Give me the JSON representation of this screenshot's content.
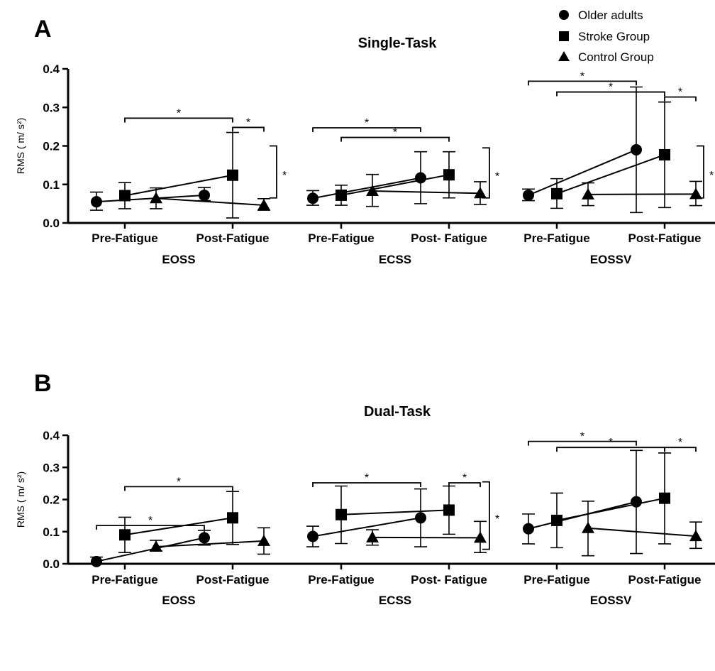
{
  "legend": {
    "placement": "top-right",
    "items": [
      {
        "label": "Older adults",
        "marker": "circle"
      },
      {
        "label": "Stroke Group",
        "marker": "square"
      },
      {
        "label": "Control Group",
        "marker": "triangle"
      }
    ]
  },
  "colors": {
    "ink": "#000000",
    "background": "#ffffff"
  },
  "chart_data": [
    {
      "type": "scatter",
      "panel": "A",
      "title": "Single-Task",
      "ylabel": "RMS ( m/ s²)",
      "ylim": [
        0,
        0.4
      ],
      "yticks": [
        "0.0",
        "0.1",
        "0.2",
        "0.3",
        "0.4"
      ],
      "grid": false,
      "groups": [
        {
          "name": "EOSS",
          "x_labels": [
            "Pre-Fatigue",
            "Post-Fatigue"
          ]
        },
        {
          "name": "ECSS",
          "x_labels": [
            "Pre-Fatigue",
            "Post- Fatigue"
          ]
        },
        {
          "name": "EOSSV",
          "x_labels": [
            "Pre-Fatigue",
            "Post-Fatigue"
          ]
        }
      ],
      "series": [
        {
          "name": "Older adults",
          "marker": "circle",
          "points": [
            {
              "group": "EOSS",
              "time": "Pre-Fatigue",
              "y": 0.055,
              "err_low": 0.033,
              "err_high": 0.08
            },
            {
              "group": "EOSS",
              "time": "Post-Fatigue",
              "y": 0.072,
              "err_low": 0.058,
              "err_high": 0.092
            },
            {
              "group": "ECSS",
              "time": "Pre-Fatigue",
              "y": 0.064,
              "err_low": 0.046,
              "err_high": 0.084
            },
            {
              "group": "ECSS",
              "time": "Post-Fatigue",
              "y": 0.117,
              "err_low": 0.05,
              "err_high": 0.185
            },
            {
              "group": "EOSSV",
              "time": "Pre-Fatigue",
              "y": 0.072,
              "err_low": 0.058,
              "err_high": 0.088
            },
            {
              "group": "EOSSV",
              "time": "Post-Fatigue",
              "y": 0.19,
              "err_low": 0.027,
              "err_high": 0.353
            }
          ]
        },
        {
          "name": "Stroke Group",
          "marker": "square",
          "points": [
            {
              "group": "EOSS",
              "time": "Pre-Fatigue",
              "y": 0.071,
              "err_low": 0.037,
              "err_high": 0.105
            },
            {
              "group": "EOSS",
              "time": "Post-Fatigue",
              "y": 0.124,
              "err_low": 0.013,
              "err_high": 0.235
            },
            {
              "group": "ECSS",
              "time": "Pre-Fatigue",
              "y": 0.072,
              "err_low": 0.046,
              "err_high": 0.098
            },
            {
              "group": "ECSS",
              "time": "Post-Fatigue",
              "y": 0.125,
              "err_low": 0.065,
              "err_high": 0.185
            },
            {
              "group": "EOSSV",
              "time": "Pre-Fatigue",
              "y": 0.076,
              "err_low": 0.038,
              "err_high": 0.115
            },
            {
              "group": "EOSSV",
              "time": "Post-Fatigue",
              "y": 0.177,
              "err_low": 0.04,
              "err_high": 0.314
            }
          ]
        },
        {
          "name": "Control Group",
          "marker": "triangle",
          "points": [
            {
              "group": "EOSS",
              "time": "Pre-Fatigue",
              "y": 0.064,
              "err_low": 0.037,
              "err_high": 0.091
            },
            {
              "group": "EOSS",
              "time": "Post-Fatigue",
              "y": 0.046,
              "err_low": 0.033,
              "err_high": 0.063
            },
            {
              "group": "ECSS",
              "time": "Pre-Fatigue",
              "y": 0.083,
              "err_low": 0.043,
              "err_high": 0.126
            },
            {
              "group": "ECSS",
              "time": "Post-Fatigue",
              "y": 0.077,
              "err_low": 0.048,
              "err_high": 0.107
            },
            {
              "group": "EOSSV",
              "time": "Pre-Fatigue",
              "y": 0.074,
              "err_low": 0.045,
              "err_high": 0.104
            },
            {
              "group": "EOSSV",
              "time": "Post-Fatigue",
              "y": 0.075,
              "err_low": 0.045,
              "err_high": 0.108
            }
          ]
        }
      ],
      "significance": [
        {
          "from": {
            "group": "EOSS",
            "time": "Pre-Fatigue",
            "series": "Stroke Group"
          },
          "to": {
            "group": "EOSS",
            "time": "Post-Fatigue",
            "series": "Stroke Group"
          },
          "y": 0.272,
          "label": "*"
        },
        {
          "from": {
            "group": "EOSS",
            "time": "Post-Fatigue",
            "series": "Stroke Group"
          },
          "to": {
            "group": "EOSS",
            "time": "Post-Fatigue",
            "series": "Control Group"
          },
          "y": 0.248,
          "label": "*"
        },
        {
          "from": {
            "group": "ECSS",
            "time": "Pre-Fatigue",
            "series": "Older adults"
          },
          "to": {
            "group": "ECSS",
            "time": "Post-Fatigue",
            "series": "Older adults"
          },
          "y": 0.247,
          "label": "*"
        },
        {
          "from": {
            "group": "ECSS",
            "time": "Pre-Fatigue",
            "series": "Stroke Group"
          },
          "to": {
            "group": "ECSS",
            "time": "Post-Fatigue",
            "series": "Stroke Group"
          },
          "y": 0.222,
          "label": "*"
        },
        {
          "from": {
            "group": "EOSSV",
            "time": "Pre-Fatigue",
            "series": "Older adults"
          },
          "to": {
            "group": "EOSSV",
            "time": "Post-Fatigue",
            "series": "Older adults"
          },
          "y": 0.368,
          "label": "*"
        },
        {
          "from": {
            "group": "EOSSV",
            "time": "Pre-Fatigue",
            "series": "Stroke Group"
          },
          "to": {
            "group": "EOSSV",
            "time": "Post-Fatigue",
            "series": "Stroke Group"
          },
          "y": 0.34,
          "label": "*"
        },
        {
          "from": {
            "group": "EOSSV",
            "time": "Post-Fatigue",
            "series": "Stroke Group"
          },
          "to": {
            "group": "EOSSV",
            "time": "Post-Fatigue",
            "series": "Control Group"
          },
          "y": 0.327,
          "label": "*"
        }
      ],
      "brackets": [
        {
          "group": "EOSS",
          "y_low": 0.065,
          "y_high": 0.2,
          "label": "*"
        },
        {
          "group": "ECSS",
          "y_low": 0.065,
          "y_high": 0.195,
          "label": "*"
        },
        {
          "group": "EOSSV",
          "y_low": 0.065,
          "y_high": 0.2,
          "label": "*"
        }
      ]
    },
    {
      "type": "scatter",
      "panel": "B",
      "title": "Dual-Task",
      "ylabel": "RMS ( m/ s²)",
      "ylim": [
        0,
        0.4
      ],
      "yticks": [
        "0.0",
        "0.1",
        "0.2",
        "0.3",
        "0.4"
      ],
      "grid": false,
      "groups": [
        {
          "name": "EOSS",
          "x_labels": [
            "Pre-Fatigue",
            "Post-Fatigue"
          ]
        },
        {
          "name": "ECSS",
          "x_labels": [
            "Pre-Fatigue",
            "Post- Fatigue"
          ]
        },
        {
          "name": "EOSSV",
          "x_labels": [
            "Pre-Fatigue",
            "Post-Fatigue"
          ]
        }
      ],
      "series": [
        {
          "name": "Older adults",
          "marker": "circle",
          "points": [
            {
              "group": "EOSS",
              "time": "Pre-Fatigue",
              "y": 0.007,
              "err_low": 0.0,
              "err_high": 0.021
            },
            {
              "group": "EOSS",
              "time": "Post-Fatigue",
              "y": 0.081,
              "err_low": 0.058,
              "err_high": 0.104
            },
            {
              "group": "ECSS",
              "time": "Pre-Fatigue",
              "y": 0.085,
              "err_low": 0.053,
              "err_high": 0.117
            },
            {
              "group": "ECSS",
              "time": "Post-Fatigue",
              "y": 0.143,
              "err_low": 0.053,
              "err_high": 0.233
            },
            {
              "group": "EOSSV",
              "time": "Pre-Fatigue",
              "y": 0.109,
              "err_low": 0.062,
              "err_high": 0.155
            },
            {
              "group": "EOSSV",
              "time": "Post-Fatigue",
              "y": 0.193,
              "err_low": 0.032,
              "err_high": 0.353
            }
          ]
        },
        {
          "name": "Stroke Group",
          "marker": "square",
          "points": [
            {
              "group": "EOSS",
              "time": "Pre-Fatigue",
              "y": 0.09,
              "err_low": 0.035,
              "err_high": 0.145
            },
            {
              "group": "EOSS",
              "time": "Post-Fatigue",
              "y": 0.143,
              "err_low": 0.06,
              "err_high": 0.225
            },
            {
              "group": "ECSS",
              "time": "Pre-Fatigue",
              "y": 0.153,
              "err_low": 0.063,
              "err_high": 0.242
            },
            {
              "group": "ECSS",
              "time": "Post-Fatigue",
              "y": 0.167,
              "err_low": 0.092,
              "err_high": 0.242
            },
            {
              "group": "EOSSV",
              "time": "Pre-Fatigue",
              "y": 0.135,
              "err_low": 0.05,
              "err_high": 0.22
            },
            {
              "group": "EOSSV",
              "time": "Post-Fatigue",
              "y": 0.204,
              "err_low": 0.062,
              "err_high": 0.345
            }
          ]
        },
        {
          "name": "Control Group",
          "marker": "triangle",
          "points": [
            {
              "group": "EOSS",
              "time": "Pre-Fatigue",
              "y": 0.053,
              "err_low": 0.04,
              "err_high": 0.073
            },
            {
              "group": "EOSS",
              "time": "Post-Fatigue",
              "y": 0.071,
              "err_low": 0.03,
              "err_high": 0.112
            },
            {
              "group": "ECSS",
              "time": "Pre-Fatigue",
              "y": 0.082,
              "err_low": 0.058,
              "err_high": 0.106
            },
            {
              "group": "ECSS",
              "time": "Post-Fatigue",
              "y": 0.081,
              "err_low": 0.035,
              "err_high": 0.132
            },
            {
              "group": "EOSSV",
              "time": "Pre-Fatigue",
              "y": 0.111,
              "err_low": 0.025,
              "err_high": 0.195
            },
            {
              "group": "EOSSV",
              "time": "Post-Fatigue",
              "y": 0.086,
              "err_low": 0.048,
              "err_high": 0.13
            }
          ]
        }
      ],
      "significance": [
        {
          "from": {
            "group": "EOSS",
            "time": "Pre-Fatigue",
            "series": "Older adults"
          },
          "to": {
            "group": "EOSS",
            "time": "Post-Fatigue",
            "series": "Older adults"
          },
          "y": 0.119,
          "label": "*"
        },
        {
          "from": {
            "group": "EOSS",
            "time": "Pre-Fatigue",
            "series": "Stroke Group"
          },
          "to": {
            "group": "EOSS",
            "time": "Post-Fatigue",
            "series": "Stroke Group"
          },
          "y": 0.24,
          "label": "*"
        },
        {
          "from": {
            "group": "ECSS",
            "time": "Pre-Fatigue",
            "series": "Older adults"
          },
          "to": {
            "group": "ECSS",
            "time": "Post-Fatigue",
            "series": "Older adults"
          },
          "y": 0.252,
          "label": "*"
        },
        {
          "from": {
            "group": "ECSS",
            "time": "Post-Fatigue",
            "series": "Stroke Group"
          },
          "to": {
            "group": "ECSS",
            "time": "Post-Fatigue",
            "series": "Control Group"
          },
          "y": 0.252,
          "label": "*"
        },
        {
          "from": {
            "group": "EOSSV",
            "time": "Pre-Fatigue",
            "series": "Older adults"
          },
          "to": {
            "group": "EOSSV",
            "time": "Post-Fatigue",
            "series": "Older adults"
          },
          "y": 0.381,
          "label": "*"
        },
        {
          "from": {
            "group": "EOSSV",
            "time": "Pre-Fatigue",
            "series": "Stroke Group"
          },
          "to": {
            "group": "EOSSV",
            "time": "Post-Fatigue",
            "series": "Stroke Group"
          },
          "y": 0.362,
          "label": "*"
        },
        {
          "from": {
            "group": "EOSSV",
            "time": "Post-Fatigue",
            "series": "Stroke Group"
          },
          "to": {
            "group": "EOSSV",
            "time": "Post-Fatigue",
            "series": "Control Group"
          },
          "y": 0.362,
          "label": "*"
        }
      ],
      "brackets": [
        {
          "group": "ECSS",
          "y_low": 0.045,
          "y_high": 0.255,
          "label": "*"
        }
      ]
    }
  ]
}
